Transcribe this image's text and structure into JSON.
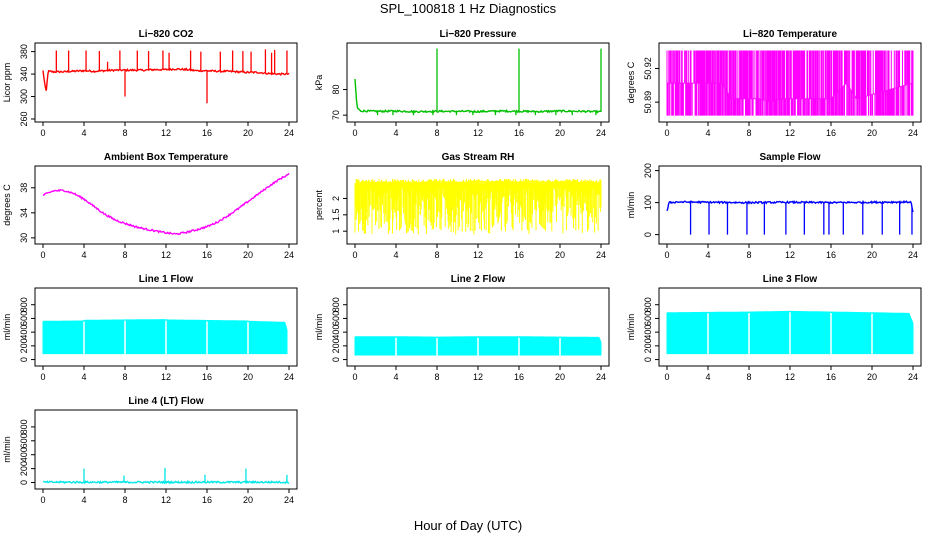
{
  "figure": {
    "title": "SPL_100818  1 Hz Diagnostics",
    "xlabel": "Hour of Day (UTC)"
  },
  "chart_data": [
    {
      "type": "line",
      "title": "Li−820 CO2",
      "ylabel": "Licor ppm",
      "color": "#ff0000",
      "xlim": [
        0,
        24
      ],
      "ylim": [
        260,
        390
      ],
      "yticks": [
        260,
        300,
        340,
        380
      ],
      "xticks": [
        0,
        4,
        8,
        12,
        16,
        20,
        24
      ],
      "x": [
        0,
        0.3,
        0.5,
        1,
        2,
        3,
        4,
        5,
        6,
        7,
        8,
        9,
        10,
        11,
        12,
        13,
        14,
        15,
        16,
        17,
        18,
        19,
        20,
        21,
        22,
        23,
        24
      ],
      "values": [
        346,
        306,
        345,
        344,
        344,
        345,
        346,
        345,
        346,
        347,
        347,
        347,
        347,
        348,
        348,
        349,
        348,
        346,
        346,
        345,
        345,
        344,
        343,
        343,
        341,
        340,
        340
      ],
      "spikes": {
        "x": [
          1.3,
          2.5,
          4.2,
          5.5,
          6.3,
          7.5,
          8.0,
          9.2,
          10.3,
          11.7,
          12.3,
          14.4,
          15.4,
          16.0,
          17.3,
          18.5,
          19.5,
          20.3,
          21.7,
          22.3,
          22.6,
          23.8
        ],
        "y": [
          382,
          382,
          382,
          381,
          362,
          382,
          300,
          382,
          381,
          382,
          378,
          382,
          380,
          288,
          380,
          382,
          381,
          380,
          384,
          378,
          383,
          382
        ]
      }
    },
    {
      "type": "line",
      "title": "Li−820 Pressure",
      "ylabel": "kPa",
      "color": "#00c000",
      "xlim": [
        0,
        24
      ],
      "ylim": [
        68.5,
        97
      ],
      "yticks": [
        70,
        80
      ],
      "xticks": [
        0,
        4,
        8,
        12,
        16,
        20,
        24
      ],
      "x": [
        0,
        0.2,
        0.5,
        2,
        4,
        6,
        8,
        10,
        12,
        14,
        16,
        18,
        20,
        22,
        24
      ],
      "values": [
        84,
        73,
        71.7,
        71.5,
        71.6,
        71.4,
        71.5,
        71.5,
        71.4,
        71.6,
        71.5,
        71.4,
        71.6,
        71.5,
        71.3
      ],
      "spikes": {
        "x": [
          8,
          16,
          24
        ],
        "y": [
          96,
          96,
          96
        ]
      },
      "dips": {
        "x": [
          2.2,
          3.7,
          5.7,
          7.6,
          9.9,
          11.5,
          13.7,
          15.7,
          17.6,
          19.6,
          21.2,
          23.5
        ],
        "y": [
          70,
          70,
          70,
          70,
          70,
          70,
          70,
          70,
          70,
          70,
          70,
          70
        ]
      }
    },
    {
      "type": "line",
      "title": "Li−820 Temperature",
      "ylabel": "degrees C",
      "color": "#ff00ff",
      "xlim": [
        0,
        24
      ],
      "ylim": [
        50.875,
        50.94
      ],
      "yticks": [
        50.89,
        50.92
      ],
      "xticks": [
        0,
        4,
        8,
        12,
        16,
        20,
        24
      ],
      "x": [
        0,
        5.3,
        6.3,
        9.0,
        10.2,
        11.0,
        14.5,
        16.0,
        17.5,
        18.5,
        24
      ],
      "values": [
        50.907,
        50.907,
        50.893,
        50.893,
        50.89,
        50.893,
        50.893,
        50.893,
        50.907,
        50.893,
        50.907
      ],
      "band": {
        "low": 50.878,
        "high": 50.936
      }
    },
    {
      "type": "line",
      "title": "Ambient Box Temperature",
      "ylabel": "degrees C",
      "color": "#ff00ff",
      "xlim": [
        0,
        24
      ],
      "ylim": [
        29.5,
        41
      ],
      "yticks": [
        30,
        34,
        38
      ],
      "xticks": [
        0,
        4,
        8,
        12,
        16,
        20,
        24
      ],
      "x": [
        0,
        1,
        2,
        3,
        4,
        5,
        6,
        7,
        8,
        9,
        10,
        11,
        12,
        13,
        14,
        15,
        16,
        17,
        18,
        19,
        20,
        21,
        22,
        23,
        24
      ],
      "values": [
        36.8,
        37.5,
        37.6,
        37.1,
        36.2,
        35.0,
        33.8,
        32.9,
        32.3,
        31.8,
        31.4,
        31.1,
        30.8,
        30.6,
        30.9,
        31.3,
        31.8,
        32.5,
        33.5,
        34.6,
        35.8,
        37.0,
        38.2,
        39.3,
        40.2
      ]
    },
    {
      "type": "line",
      "title": "Gas Stream RH",
      "ylabel": "percent",
      "color": "#ffff00",
      "xlim": [
        0,
        24
      ],
      "ylim": [
        0.7,
        2.9
      ],
      "yticks": [
        1.0,
        1.5,
        2.0
      ],
      "xticks": [
        0,
        4,
        8,
        12,
        16,
        20,
        24
      ],
      "x": [
        0,
        0.5,
        1,
        2,
        3,
        4,
        5,
        6,
        7,
        8,
        9,
        10,
        11,
        12,
        13,
        14,
        15,
        16,
        17,
        18,
        19,
        20,
        21,
        22,
        23,
        24
      ],
      "values": [
        2.2,
        2.45,
        2.5,
        2.48,
        2.47,
        2.49,
        2.48,
        2.47,
        2.5,
        2.51,
        2.5,
        2.49,
        2.5,
        2.52,
        2.5,
        2.51,
        2.5,
        2.49,
        2.52,
        2.5,
        2.49,
        2.5,
        2.51,
        2.48,
        2.5,
        2.45
      ],
      "band": {
        "low": 0.9,
        "high": 2.6
      }
    },
    {
      "type": "line",
      "title": "Sample Flow",
      "ylabel": "ml/min",
      "color": "#0000ff",
      "xlim": [
        0,
        24
      ],
      "ylim": [
        -20,
        205
      ],
      "yticks": [
        0,
        100,
        200
      ],
      "xticks": [
        0,
        4,
        8,
        12,
        16,
        20,
        24
      ],
      "x": [
        0,
        0.2,
        1,
        4,
        8,
        12,
        16,
        20,
        23.8,
        24
      ],
      "values": [
        72,
        100,
        102,
        101,
        100,
        101,
        100,
        101,
        102,
        70
      ],
      "dips": {
        "x": [
          2.3,
          4.1,
          5.9,
          7.8,
          9.5,
          11.6,
          13.4,
          15.3,
          15.8,
          17.2,
          19.1,
          21.0,
          22.7,
          23.9
        ],
        "y": [
          0,
          0,
          0,
          0,
          0,
          0,
          0,
          0,
          0,
          0,
          0,
          0,
          0,
          0
        ]
      }
    },
    {
      "type": "area",
      "title": "Line 1 Flow",
      "ylabel": "ml/min",
      "color": "#00ffff",
      "xlim": [
        0,
        24
      ],
      "ylim": [
        -50,
        1000
      ],
      "yticks": [
        0,
        200,
        400,
        600,
        800
      ],
      "xticks": [
        0,
        4,
        8,
        12,
        16,
        20,
        24
      ],
      "x": [
        0,
        3.9,
        4.1,
        11.9,
        12.1,
        19.9,
        20.1,
        23.6,
        23.8
      ],
      "values": [
        555,
        560,
        570,
        580,
        575,
        560,
        555,
        540,
        420
      ],
      "band": {
        "low": 80
      }
    },
    {
      "type": "area",
      "title": "Line 2 Flow",
      "ylabel": "ml/min",
      "color": "#00ffff",
      "xlim": [
        0,
        24
      ],
      "ylim": [
        -50,
        1000
      ],
      "yticks": [
        0,
        200,
        400,
        600,
        800
      ],
      "xticks": [
        0,
        4,
        8,
        12,
        16,
        20,
        24
      ],
      "x": [
        0,
        4,
        8,
        12,
        16,
        20,
        23.8,
        24
      ],
      "values": [
        330,
        330,
        325,
        330,
        330,
        325,
        320,
        240
      ],
      "band": {
        "low": 60
      }
    },
    {
      "type": "area",
      "title": "Line 3 Flow",
      "ylabel": "ml/min",
      "color": "#00ffff",
      "xlim": [
        0,
        24
      ],
      "ylim": [
        -50,
        1000
      ],
      "yticks": [
        0,
        200,
        400,
        600,
        800
      ],
      "xticks": [
        0,
        4,
        8,
        12,
        16,
        20,
        24
      ],
      "x": [
        0,
        4,
        8,
        12,
        16,
        20,
        23.6,
        24
      ],
      "values": [
        680,
        685,
        690,
        700,
        690,
        680,
        670,
        520
      ],
      "band": {
        "low": 80
      }
    },
    {
      "type": "line",
      "title": "Line 4 (LT) Flow",
      "ylabel": "ml/min",
      "color": "#00e5e5",
      "xlim": [
        0,
        24
      ],
      "ylim": [
        -50,
        1000
      ],
      "yticks": [
        0,
        200,
        400,
        600,
        800
      ],
      "xticks": [
        0,
        4,
        8,
        12,
        16,
        20,
        24
      ],
      "x": [
        0,
        4,
        8,
        12,
        16,
        20,
        24
      ],
      "values": [
        5,
        5,
        5,
        5,
        5,
        5,
        5
      ],
      "spikes": {
        "x": [
          4.0,
          7.9,
          11.9,
          15.8,
          19.8,
          23.8
        ],
        "y": [
          200,
          100,
          210,
          110,
          200,
          110
        ]
      }
    }
  ]
}
